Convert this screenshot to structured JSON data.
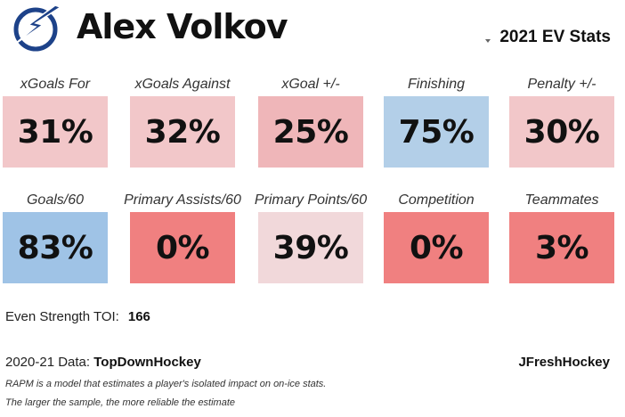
{
  "header": {
    "player_name": "Alex Volkov",
    "logo_icon": "lightning-bolt-logo-icon",
    "season_select": "2021 EV Stats"
  },
  "colors": {
    "logo_blue": "#1d4289",
    "blue_high": "#9fc3e6",
    "blue_mid": "#b3cfe8",
    "pink_light": "#f2c7c9",
    "pink_pale": "#f1d8da",
    "pink_mid": "#efb6b9",
    "red_low": "#f08080"
  },
  "metrics": [
    {
      "label": "xGoals For",
      "value": "31%",
      "color": "#f2c7c9"
    },
    {
      "label": "xGoals Against",
      "value": "32%",
      "color": "#f2c7c9"
    },
    {
      "label": "xGoal +/-",
      "value": "25%",
      "color": "#efb6b9"
    },
    {
      "label": "Finishing",
      "value": "75%",
      "color": "#b3cfe8"
    },
    {
      "label": "Penalty +/-",
      "value": "30%",
      "color": "#f2c7c9"
    },
    {
      "label": "Goals/60",
      "value": "83%",
      "color": "#9fc3e6"
    },
    {
      "label": "Primary Assists/60",
      "value": "0%",
      "color": "#f08080"
    },
    {
      "label": "Primary Points/60",
      "value": "39%",
      "color": "#f1d8da"
    },
    {
      "label": "Competition",
      "value": "0%",
      "color": "#f08080"
    },
    {
      "label": "Teammates",
      "value": "3%",
      "color": "#f08080"
    }
  ],
  "footer": {
    "toi_label": "Even Strength TOI:",
    "toi_value": "166",
    "data_label": "2020-21 Data:",
    "data_source": "TopDownHockey",
    "credit": "JFreshHockey",
    "note1": "RAPM is a model that estimates a player's isolated impact on on-ice stats.",
    "note2": "The larger the sample, the more reliable the estimate"
  }
}
